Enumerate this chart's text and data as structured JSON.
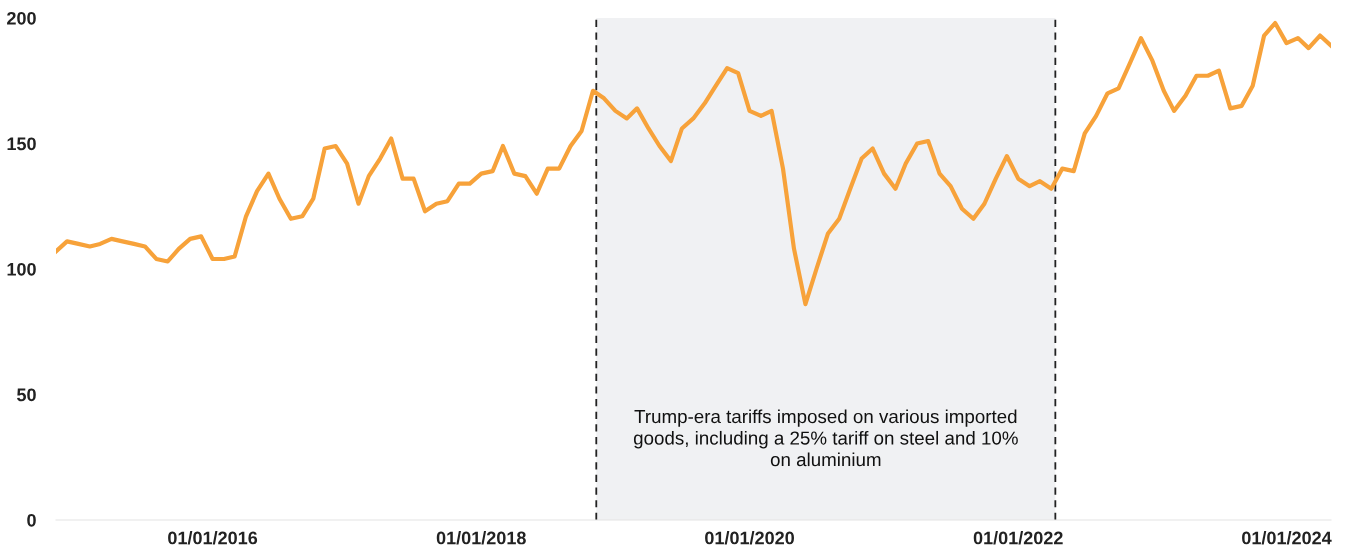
{
  "chart_data": {
    "type": "line",
    "x": [
      "2014-11",
      "2014-12",
      "2015-01",
      "2015-02",
      "2015-03",
      "2015-04",
      "2015-05",
      "2015-06",
      "2015-07",
      "2015-08",
      "2015-09",
      "2015-10",
      "2015-11",
      "2015-12",
      "2016-01",
      "2016-02",
      "2016-03",
      "2016-04",
      "2016-05",
      "2016-06",
      "2016-07",
      "2016-08",
      "2016-09",
      "2016-10",
      "2016-11",
      "2016-12",
      "2017-01",
      "2017-02",
      "2017-03",
      "2017-04",
      "2017-05",
      "2017-06",
      "2017-07",
      "2017-08",
      "2017-09",
      "2017-10",
      "2017-11",
      "2017-12",
      "2018-01",
      "2018-02",
      "2018-03",
      "2018-04",
      "2018-05",
      "2018-06",
      "2018-07",
      "2018-08",
      "2018-09",
      "2018-10",
      "2018-11",
      "2018-12",
      "2019-01",
      "2019-02",
      "2019-03",
      "2019-04",
      "2019-05",
      "2019-06",
      "2019-07",
      "2019-08",
      "2019-09",
      "2019-10",
      "2019-11",
      "2019-12",
      "2020-01",
      "2020-02",
      "2020-03",
      "2020-04",
      "2020-05",
      "2020-06",
      "2020-07",
      "2020-08",
      "2020-09",
      "2020-10",
      "2020-11",
      "2020-12",
      "2021-01",
      "2021-02",
      "2021-03",
      "2021-04",
      "2021-05",
      "2021-06",
      "2021-07",
      "2021-08",
      "2021-09",
      "2021-10",
      "2021-11",
      "2021-12",
      "2022-01",
      "2022-02",
      "2022-03",
      "2022-04",
      "2022-05",
      "2022-06",
      "2022-07",
      "2022-08",
      "2022-09",
      "2022-10",
      "2022-11",
      "2022-12",
      "2023-01",
      "2023-02",
      "2023-03",
      "2023-04",
      "2023-05",
      "2023-06",
      "2023-07",
      "2023-08",
      "2023-09",
      "2023-10",
      "2023-11",
      "2023-12",
      "2024-01",
      "2024-02",
      "2024-03",
      "2024-04",
      "2024-05"
    ],
    "series": [
      {
        "color": "#f7a23a",
        "values": [
          107,
          111,
          110,
          109,
          110,
          112,
          111,
          110,
          109,
          104,
          103,
          108,
          112,
          113,
          104,
          104,
          105,
          121,
          131,
          138,
          128,
          120,
          121,
          128,
          148,
          149,
          142,
          126,
          137,
          144,
          152,
          136,
          136,
          123,
          126,
          127,
          134,
          134,
          138,
          139,
          149,
          138,
          137,
          130,
          140,
          140,
          149,
          155,
          171,
          168,
          163,
          160,
          164,
          156,
          149,
          143,
          156,
          160,
          166,
          173,
          180,
          178,
          163,
          161,
          163,
          140,
          108,
          86,
          100,
          114,
          120,
          132,
          144,
          148,
          138,
          132,
          142,
          150,
          151,
          138,
          133,
          124,
          120,
          126,
          136,
          145,
          136,
          133,
          135,
          132,
          140,
          139,
          154,
          161,
          170,
          172,
          182,
          192,
          183,
          171,
          163,
          169,
          177,
          177,
          179,
          164,
          165,
          173,
          193,
          198,
          190,
          192,
          188,
          193,
          189
        ]
      }
    ],
    "xticks": [
      {
        "value": "2016-01-01",
        "label": "01/01/2016"
      },
      {
        "value": "2018-01-01",
        "label": "01/01/2018"
      },
      {
        "value": "2020-01-01",
        "label": "01/01/2020"
      },
      {
        "value": "2022-01-01",
        "label": "01/01/2022"
      },
      {
        "value": "2024-01-01",
        "label": "01/01/2024"
      }
    ],
    "xlim": [
      "2014-11",
      "2024-05"
    ],
    "ylim": [
      0,
      200
    ],
    "yticks": [
      0,
      50,
      100,
      150,
      200
    ],
    "grid": false,
    "legend": false,
    "marker": "none",
    "line_style": "solid",
    "bands": [
      {
        "axis": "x",
        "from": "2018-11-10",
        "to": "2022-04-12",
        "color": "#f0f1f3",
        "label": "Trump-era tariffs imposed on various imported goods, including a 25% tariff on steel and 10% on aluminium"
      }
    ],
    "ref_lines": [
      {
        "axis": "x",
        "value": "2018-11-10",
        "color": "#222222",
        "line_style": "dashed"
      },
      {
        "axis": "x",
        "value": "2022-04-12",
        "color": "#222222",
        "line_style": "dashed"
      }
    ]
  }
}
